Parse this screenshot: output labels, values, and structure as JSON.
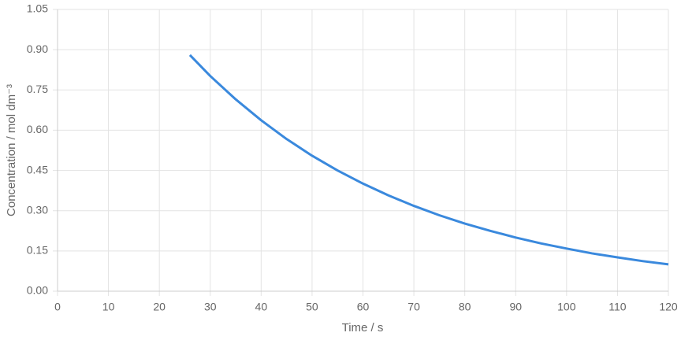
{
  "chart_data": {
    "type": "line",
    "x_label": "Time / s",
    "y_label": "Concentration / mol dm⁻³",
    "x": [
      26,
      30,
      35,
      40,
      45,
      50,
      55,
      60,
      65,
      70,
      75,
      80,
      85,
      90,
      95,
      100,
      105,
      110,
      115,
      120
    ],
    "series": [
      {
        "color": "#3a89dd",
        "values": [
          0.88,
          0.802,
          0.715,
          0.637,
          0.567,
          0.505,
          0.45,
          0.401,
          0.357,
          0.318,
          0.283,
          0.252,
          0.225,
          0.2,
          0.178,
          0.159,
          0.141,
          0.126,
          0.112,
          0.1
        ]
      }
    ],
    "xlim": [
      0,
      120
    ],
    "xticks": [
      0,
      10,
      20,
      30,
      40,
      50,
      60,
      70,
      80,
      90,
      100,
      110,
      120
    ],
    "ylim": [
      0,
      1.05
    ],
    "yticks": [
      {
        "value": 0,
        "label": "0.00"
      },
      {
        "value": 0.15,
        "label": "0.15"
      },
      {
        "value": 0.3,
        "label": "0.30"
      },
      {
        "value": 0.45,
        "label": "0.45"
      },
      {
        "value": 0.6,
        "label": "0.60"
      },
      {
        "value": 0.75,
        "label": "0.75"
      },
      {
        "value": 0.9,
        "label": "0.90"
      },
      {
        "value": 1.05,
        "label": "1.05"
      }
    ],
    "grid": true
  }
}
